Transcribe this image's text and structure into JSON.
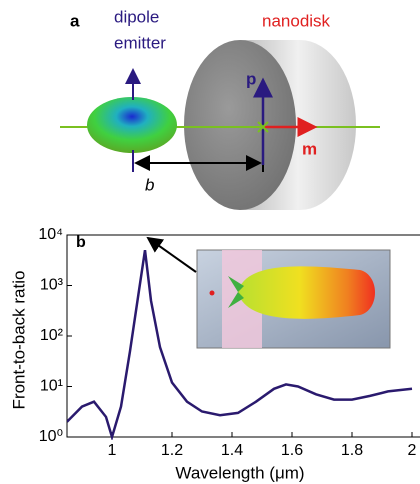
{
  "diagram": {
    "panel_label": "a",
    "dipole_label": [
      "dipole",
      "emitter"
    ],
    "disk_label": "nanodisk",
    "p_label": "p",
    "m_label": "m",
    "distance_label": "b"
  },
  "chart_data": {
    "type": "line",
    "panel_label": "b",
    "x_label": "Wavelength (μm)",
    "y_label": "Front-to-back ratio",
    "x": [
      0.85,
      0.9,
      0.94,
      0.98,
      1.0,
      1.03,
      1.06,
      1.09,
      1.11,
      1.13,
      1.16,
      1.2,
      1.25,
      1.3,
      1.36,
      1.42,
      1.48,
      1.54,
      1.58,
      1.62,
      1.68,
      1.74,
      1.8,
      1.86,
      1.92,
      2.0
    ],
    "values": [
      2,
      4,
      5,
      2.5,
      1,
      4,
      50,
      800,
      5000,
      500,
      60,
      12,
      5,
      3.2,
      2.7,
      3,
      5,
      9,
      11,
      10,
      7,
      5.5,
      5.5,
      6.5,
      8,
      9
    ],
    "color": "#2a1a6e",
    "log_y": true,
    "xlim": [
      0.85,
      2.02
    ],
    "xticks": [
      1,
      1.2,
      1.4,
      1.6,
      1.8,
      2
    ],
    "ylim": [
      1,
      10000
    ],
    "yticks": [
      {
        "value": 1,
        "label": "10⁰"
      },
      {
        "value": 10,
        "label": "10¹"
      },
      {
        "value": 100,
        "label": "10²"
      },
      {
        "value": 1000,
        "label": "10³"
      },
      {
        "value": 10000,
        "label": "10⁴"
      }
    ]
  }
}
